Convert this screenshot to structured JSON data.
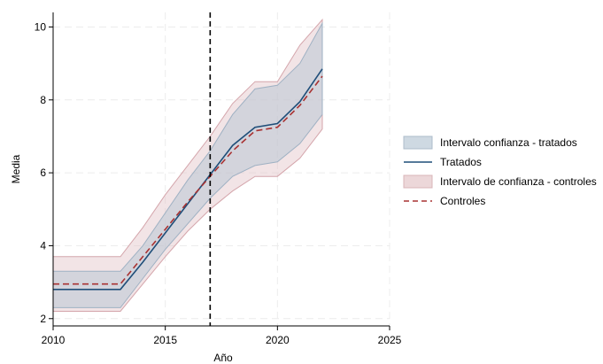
{
  "chart_data": {
    "type": "line",
    "title": "",
    "xlabel": "Año",
    "ylabel": "Media",
    "xlim": [
      2010,
      2025
    ],
    "ylim": [
      1.8,
      10.4
    ],
    "xticks": [
      2010,
      2015,
      2020,
      2025
    ],
    "yticks": [
      2,
      4,
      6,
      8,
      10
    ],
    "grid": true,
    "legend_position": "right",
    "reference_line_x": 2017,
    "series": [
      {
        "name": "Intervalo confianza - tratados",
        "kind": "band",
        "color": "#b9c7d4",
        "x": [
          2010,
          2011,
          2012,
          2013,
          2014,
          2015,
          2016,
          2017,
          2018,
          2019,
          2020,
          2021,
          2022
        ],
        "lower": [
          2.3,
          2.3,
          2.3,
          2.3,
          3.1,
          3.9,
          4.6,
          5.3,
          5.9,
          6.2,
          6.3,
          6.8,
          7.6
        ],
        "upper": [
          3.3,
          3.3,
          3.3,
          3.3,
          4.0,
          4.9,
          5.8,
          6.6,
          7.6,
          8.3,
          8.4,
          9.0,
          10.1
        ]
      },
      {
        "name": "Tratados",
        "kind": "line",
        "color": "#1f4e79",
        "x": [
          2010,
          2011,
          2012,
          2013,
          2014,
          2015,
          2016,
          2017,
          2018,
          2019,
          2020,
          2021,
          2022
        ],
        "y": [
          2.8,
          2.8,
          2.8,
          2.8,
          3.55,
          4.35,
          5.15,
          5.95,
          6.75,
          7.25,
          7.35,
          7.95,
          8.85
        ]
      },
      {
        "name": "Intervalo de confianza - controles",
        "kind": "band",
        "color": "#e3c3c7",
        "x": [
          2010,
          2011,
          2012,
          2013,
          2014,
          2015,
          2016,
          2017,
          2018,
          2019,
          2020,
          2021,
          2022
        ],
        "lower": [
          2.2,
          2.2,
          2.2,
          2.2,
          2.95,
          3.7,
          4.4,
          5.0,
          5.5,
          5.9,
          5.9,
          6.4,
          7.2
        ],
        "upper": [
          3.7,
          3.7,
          3.7,
          3.7,
          4.5,
          5.4,
          6.2,
          7.0,
          7.9,
          8.5,
          8.5,
          9.5,
          10.2
        ]
      },
      {
        "name": "Controles",
        "kind": "dashed-line",
        "color": "#a83232",
        "x": [
          2010,
          2011,
          2012,
          2013,
          2014,
          2015,
          2016,
          2017,
          2018,
          2019,
          2020,
          2021,
          2022
        ],
        "y": [
          2.95,
          2.95,
          2.95,
          2.95,
          3.7,
          4.45,
          5.2,
          5.9,
          6.6,
          7.15,
          7.25,
          7.85,
          8.65
        ]
      }
    ]
  }
}
